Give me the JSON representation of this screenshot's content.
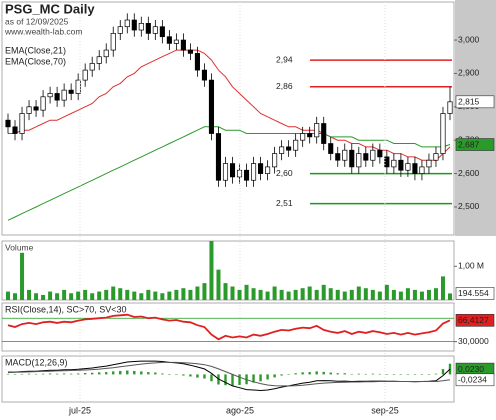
{
  "chart_data": [
    {
      "type": "candlestick",
      "title": "PSG_MC Daily",
      "subtitle": "as of 12/09/2025",
      "source": "www.wealth-lab.com",
      "up_color": "#ffffff",
      "down_color": "#000000",
      "open": [
        2.76,
        2.74,
        2.72,
        2.78,
        2.8,
        2.79,
        2.83,
        2.84,
        2.82,
        2.85,
        2.84,
        2.88,
        2.91,
        2.93,
        2.95,
        2.97,
        3.02,
        3.04,
        3.06,
        3.03,
        3.05,
        3.02,
        3.04,
        3.01,
        2.99,
        3.0,
        2.97,
        2.96,
        2.91,
        2.88,
        2.72,
        2.58,
        2.63,
        2.59,
        2.61,
        2.58,
        2.63,
        2.6,
        2.62,
        2.66,
        2.68,
        2.67,
        2.7,
        2.72,
        2.71,
        2.75,
        2.69,
        2.66,
        2.64,
        2.67,
        2.62,
        2.66,
        2.64,
        2.67,
        2.65,
        2.62,
        2.64,
        2.61,
        2.63,
        2.6,
        2.62,
        2.64,
        2.66,
        2.78
      ],
      "high": [
        2.78,
        2.76,
        2.8,
        2.82,
        2.82,
        2.85,
        2.86,
        2.86,
        2.87,
        2.87,
        2.9,
        2.93,
        2.95,
        2.97,
        2.99,
        3.04,
        3.06,
        3.08,
        3.08,
        3.07,
        3.07,
        3.06,
        3.06,
        3.03,
        3.02,
        3.02,
        2.99,
        2.98,
        2.93,
        2.9,
        2.74,
        2.65,
        2.65,
        2.63,
        2.63,
        2.65,
        2.65,
        2.64,
        2.68,
        2.7,
        2.7,
        2.72,
        2.74,
        2.74,
        2.77,
        2.77,
        2.71,
        2.68,
        2.69,
        2.69,
        2.68,
        2.68,
        2.69,
        2.69,
        2.67,
        2.66,
        2.66,
        2.65,
        2.65,
        2.64,
        2.66,
        2.68,
        2.8,
        2.86
      ],
      "low": [
        2.72,
        2.7,
        2.7,
        2.76,
        2.77,
        2.77,
        2.81,
        2.8,
        2.8,
        2.82,
        2.82,
        2.86,
        2.89,
        2.91,
        2.93,
        2.95,
        3.0,
        3.02,
        3.01,
        3.01,
        3.0,
        3.0,
        2.99,
        2.97,
        2.97,
        2.95,
        2.94,
        2.89,
        2.86,
        2.7,
        2.56,
        2.56,
        2.57,
        2.57,
        2.56,
        2.56,
        2.58,
        2.58,
        2.6,
        2.64,
        2.65,
        2.65,
        2.68,
        2.69,
        2.69,
        2.67,
        2.64,
        2.62,
        2.62,
        2.6,
        2.6,
        2.62,
        2.62,
        2.63,
        2.6,
        2.6,
        2.59,
        2.59,
        2.58,
        2.58,
        2.6,
        2.62,
        2.64,
        2.76
      ],
      "close": [
        2.74,
        2.72,
        2.78,
        2.8,
        2.79,
        2.83,
        2.84,
        2.82,
        2.85,
        2.84,
        2.88,
        2.91,
        2.93,
        2.95,
        2.97,
        3.02,
        3.04,
        3.06,
        3.03,
        3.05,
        3.02,
        3.04,
        3.01,
        2.99,
        3.0,
        2.97,
        2.96,
        2.91,
        2.88,
        2.72,
        2.58,
        2.63,
        2.59,
        2.61,
        2.58,
        2.63,
        2.6,
        2.62,
        2.66,
        2.68,
        2.67,
        2.7,
        2.72,
        2.71,
        2.75,
        2.69,
        2.66,
        2.64,
        2.67,
        2.62,
        2.66,
        2.64,
        2.67,
        2.65,
        2.62,
        2.64,
        2.61,
        2.63,
        2.6,
        2.62,
        2.64,
        2.66,
        2.78,
        2.815
      ],
      "series": [
        {
          "name": "EMA(Close,21)",
          "color": "#e03030",
          "values": [
            2.72,
            2.72,
            2.73,
            2.73,
            2.74,
            2.75,
            2.76,
            2.76,
            2.77,
            2.78,
            2.79,
            2.8,
            2.81,
            2.83,
            2.84,
            2.86,
            2.87,
            2.89,
            2.9,
            2.92,
            2.93,
            2.94,
            2.95,
            2.96,
            2.97,
            2.97,
            2.97,
            2.97,
            2.96,
            2.94,
            2.91,
            2.89,
            2.86,
            2.84,
            2.82,
            2.8,
            2.78,
            2.77,
            2.76,
            2.75,
            2.74,
            2.74,
            2.73,
            2.73,
            2.73,
            2.72,
            2.71,
            2.7,
            2.7,
            2.69,
            2.69,
            2.68,
            2.68,
            2.67,
            2.67,
            2.66,
            2.66,
            2.65,
            2.65,
            2.64,
            2.64,
            2.64,
            2.66,
            2.68
          ]
        },
        {
          "name": "EMA(Close,70)",
          "color": "#2a9a2a",
          "values": [
            2.46,
            2.47,
            2.48,
            2.49,
            2.5,
            2.51,
            2.52,
            2.53,
            2.54,
            2.55,
            2.56,
            2.57,
            2.58,
            2.59,
            2.6,
            2.61,
            2.62,
            2.63,
            2.64,
            2.65,
            2.66,
            2.67,
            2.68,
            2.69,
            2.7,
            2.71,
            2.72,
            2.73,
            2.74,
            2.74,
            2.74,
            2.73,
            2.73,
            2.73,
            2.72,
            2.72,
            2.72,
            2.72,
            2.72,
            2.72,
            2.72,
            2.72,
            2.72,
            2.72,
            2.72,
            2.72,
            2.71,
            2.71,
            2.71,
            2.71,
            2.7,
            2.7,
            2.7,
            2.7,
            2.7,
            2.69,
            2.69,
            2.69,
            2.69,
            2.68,
            2.68,
            2.68,
            2.68,
            2.687
          ]
        }
      ],
      "levels": [
        {
          "value": 2.94,
          "label": "2,94",
          "color": "#e02020"
        },
        {
          "value": 2.86,
          "label": "2,86",
          "color": "#e02020"
        },
        {
          "value": 2.6,
          "label": "2,60",
          "color": "#1a9a1a"
        },
        {
          "value": 2.51,
          "label": "2,51",
          "color": "#1a9a1a"
        }
      ],
      "last_labels": [
        {
          "value": 2.815,
          "label": "2,815",
          "color": "#ffffff"
        },
        {
          "value": 2.687,
          "label": "2,687",
          "color": "#2a9a2a"
        }
      ],
      "ylim": [
        2.416,
        3.114
      ],
      "yticks": [
        {
          "value": 2.5,
          "label": "2,500"
        },
        {
          "value": 2.6,
          "label": "2,600"
        },
        {
          "value": 2.7,
          "label": "2,700"
        },
        {
          "value": 2.8,
          "label": "2,800"
        },
        {
          "value": 2.9,
          "label": "2,900"
        },
        {
          "value": 3.0,
          "label": "3,000"
        }
      ],
      "x_labels": [
        "jul-25",
        "ago-25",
        "sep-25"
      ]
    },
    {
      "type": "bar",
      "title": "Volume",
      "color": "#2a9a2a",
      "values": [
        250000,
        200000,
        1400000,
        300000,
        200000,
        150000,
        250000,
        200000,
        300000,
        200000,
        250000,
        300000,
        200000,
        250000,
        300000,
        400000,
        350000,
        300000,
        250000,
        200000,
        300000,
        250000,
        200000,
        250000,
        300000,
        350000,
        300000,
        400000,
        500000,
        1750000,
        900000,
        500000,
        400000,
        300000,
        450000,
        350000,
        300000,
        250000,
        400000,
        300000,
        250000,
        300000,
        350000,
        400000,
        300000,
        450000,
        350000,
        300000,
        250000,
        300000,
        400000,
        350000,
        300000,
        250000,
        450000,
        300000,
        250000,
        350000,
        300000,
        250000,
        300000,
        350000,
        700000,
        194554
      ],
      "ylim": [
        0,
        1750000
      ],
      "yticks": [
        {
          "value": 1000000,
          "label": "1,00 M"
        }
      ],
      "last_labels": [
        {
          "value": 194554,
          "label": "194.554",
          "color": "#ffffff"
        }
      ]
    },
    {
      "type": "line",
      "title": "RSI(Close,14), SC>70, SV<30",
      "series": [
        {
          "name": "RSI",
          "color": "#e02020",
          "values": [
            58,
            55,
            60,
            62,
            60,
            63,
            64,
            62,
            64,
            63,
            66,
            68,
            69,
            70,
            71,
            74,
            75,
            76,
            72,
            73,
            70,
            71,
            68,
            66,
            67,
            64,
            63,
            58,
            55,
            42,
            34,
            40,
            37,
            39,
            37,
            42,
            40,
            43,
            47,
            50,
            49,
            52,
            54,
            53,
            57,
            50,
            47,
            45,
            48,
            43,
            47,
            45,
            48,
            46,
            43,
            45,
            42,
            45,
            42,
            44,
            46,
            49,
            61,
            66.4127
          ]
        }
      ],
      "levels": [
        {
          "value": 70,
          "color": "#1a9a1a"
        },
        {
          "value": 30,
          "color": "#1a9a1a"
        }
      ],
      "ylim": [
        14,
        96
      ],
      "yticks": [
        {
          "value": 30,
          "label": "30,0000"
        }
      ],
      "last_labels": [
        {
          "value": 66.4127,
          "label": "66,4127",
          "color": "#e02020"
        }
      ]
    },
    {
      "type": "macd",
      "title": "MACD(12,26,9)",
      "series": [
        {
          "name": "MACD",
          "color": "#000000",
          "values": [
            0.01,
            0.01,
            0.012,
            0.014,
            0.014,
            0.016,
            0.018,
            0.018,
            0.02,
            0.02,
            0.022,
            0.025,
            0.028,
            0.032,
            0.036,
            0.042,
            0.048,
            0.054,
            0.056,
            0.058,
            0.058,
            0.058,
            0.056,
            0.052,
            0.05,
            0.046,
            0.04,
            0.032,
            0.024,
            0.005,
            -0.02,
            -0.035,
            -0.05,
            -0.058,
            -0.066,
            -0.068,
            -0.07,
            -0.068,
            -0.062,
            -0.055,
            -0.05,
            -0.044,
            -0.038,
            -0.034,
            -0.028,
            -0.027,
            -0.028,
            -0.03,
            -0.029,
            -0.031,
            -0.03,
            -0.03,
            -0.029,
            -0.029,
            -0.03,
            -0.03,
            -0.031,
            -0.031,
            -0.032,
            -0.031,
            -0.03,
            -0.028,
            -0.005,
            0.023
          ]
        },
        {
          "name": "Signal",
          "color": "#555555",
          "values": [
            0.008,
            0.009,
            0.01,
            0.011,
            0.012,
            0.013,
            0.014,
            0.015,
            0.016,
            0.017,
            0.018,
            0.019,
            0.021,
            0.023,
            0.026,
            0.029,
            0.033,
            0.037,
            0.041,
            0.045,
            0.048,
            0.05,
            0.052,
            0.052,
            0.052,
            0.051,
            0.049,
            0.046,
            0.042,
            0.035,
            0.024,
            0.012,
            0.0,
            -0.012,
            -0.023,
            -0.032,
            -0.04,
            -0.046,
            -0.049,
            -0.05,
            -0.05,
            -0.049,
            -0.047,
            -0.044,
            -0.041,
            -0.038,
            -0.036,
            -0.035,
            -0.034,
            -0.033,
            -0.033,
            -0.032,
            -0.032,
            -0.031,
            -0.031,
            -0.031,
            -0.031,
            -0.031,
            -0.031,
            -0.031,
            -0.031,
            -0.031,
            -0.028,
            -0.0234
          ]
        }
      ],
      "histogram": {
        "color": "#2a9a2a",
        "values": [
          0.002,
          0.001,
          0.002,
          0.003,
          0.002,
          0.003,
          0.004,
          0.003,
          0.004,
          0.003,
          0.004,
          0.006,
          0.007,
          0.009,
          0.01,
          0.013,
          0.015,
          0.017,
          0.015,
          0.013,
          0.01,
          0.008,
          0.004,
          0.0,
          -0.002,
          -0.005,
          -0.009,
          -0.014,
          -0.018,
          -0.03,
          -0.044,
          -0.047,
          -0.05,
          -0.046,
          -0.043,
          -0.036,
          -0.03,
          -0.022,
          -0.013,
          -0.005,
          0.0,
          0.005,
          0.009,
          0.01,
          0.013,
          0.011,
          0.008,
          0.005,
          0.005,
          0.002,
          0.003,
          0.002,
          0.003,
          0.002,
          0.001,
          0.001,
          0.0,
          0.0,
          -0.001,
          0.0,
          0.001,
          0.003,
          0.023,
          0.0464
        ]
      },
      "ylim": [
        -0.12,
        0.08
      ],
      "last_labels": [
        {
          "value": 0.023,
          "label": "0,0230",
          "color": "#2a9a2a"
        },
        {
          "value": -0.0234,
          "label": "-0,0234",
          "color": "#ffffff"
        }
      ]
    }
  ]
}
